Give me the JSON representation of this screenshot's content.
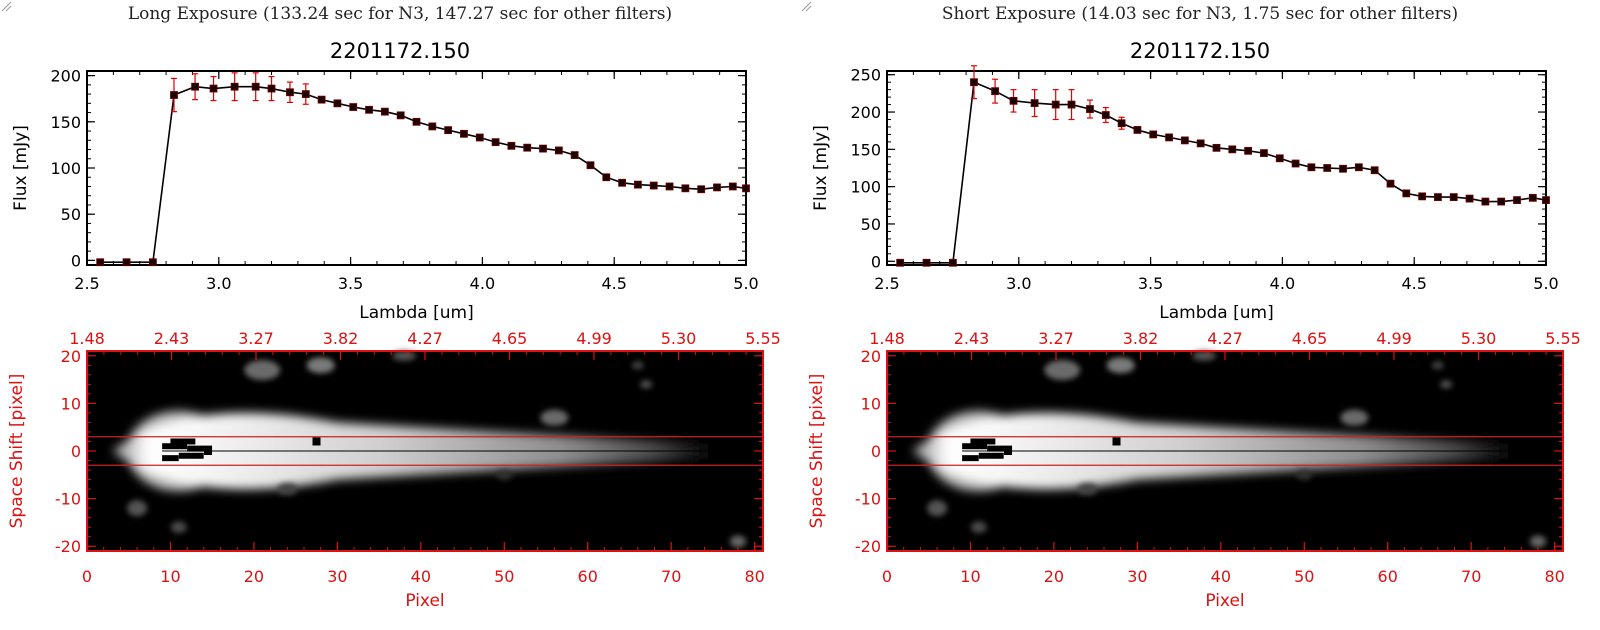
{
  "panels": [
    {
      "caption": "Long Exposure (133.24 sec for N3, 147.27 sec for other filters)",
      "spectrum": {
        "title": "2201172.150"
      },
      "image": {}
    },
    {
      "caption": "Short Exposure (14.03 sec for N3, 1.75 sec for other filters)",
      "spectrum": {
        "title": "2201172.150"
      },
      "image": {}
    }
  ],
  "colors": {
    "axis": "#000000",
    "error_bar": "#e00000",
    "image_axis": "#dd1111",
    "guide_line": "#cc2222",
    "background": "#ffffff"
  },
  "chart_data": [
    {
      "type": "line",
      "panel": "Long Exposure",
      "title": "2201172.150",
      "xlabel": "Lambda [um]",
      "ylabel": "Flux [mJy]",
      "xlim": [
        2.5,
        5.0
      ],
      "ylim": [
        -5,
        205
      ],
      "xticks": [
        "2.5",
        "3.0",
        "3.5",
        "4.0",
        "4.5",
        "5.0"
      ],
      "yticks": [
        "0",
        "50",
        "100",
        "150",
        "200"
      ],
      "grid": false,
      "markers": "filled squares",
      "series": [
        {
          "x": [
            2.55,
            2.65,
            2.75,
            2.83,
            2.91,
            2.98,
            3.06,
            3.14,
            3.2,
            3.27,
            3.33,
            3.39,
            3.45,
            3.51,
            3.57,
            3.63,
            3.69,
            3.75,
            3.81,
            3.87,
            3.93,
            3.99,
            4.05,
            4.11,
            4.17,
            4.23,
            4.29,
            4.35,
            4.41,
            4.47,
            4.53,
            4.59,
            4.65,
            4.71,
            4.77,
            4.83,
            4.89,
            4.95,
            5.0
          ],
          "y": [
            -2,
            -2,
            -2,
            179,
            188,
            186,
            188,
            188,
            186,
            182,
            180,
            174,
            170,
            166,
            163,
            161,
            157,
            150,
            145,
            141,
            137,
            133,
            128,
            124,
            122,
            121,
            119,
            114,
            103,
            90,
            84,
            82,
            81,
            80,
            78,
            77,
            79,
            80,
            78
          ],
          "y_err": [
            0,
            0,
            0,
            18,
            14,
            13,
            15,
            15,
            13,
            11,
            11,
            0,
            0,
            0,
            0,
            0,
            0,
            0,
            0,
            0,
            0,
            0,
            0,
            0,
            0,
            0,
            0,
            0,
            0,
            0,
            0,
            0,
            0,
            0,
            0,
            0,
            0,
            0,
            0
          ]
        }
      ]
    },
    {
      "type": "line",
      "panel": "Short Exposure",
      "title": "2201172.150",
      "xlabel": "Lambda [um]",
      "ylabel": "Flux [mJy]",
      "xlim": [
        2.5,
        5.0
      ],
      "ylim": [
        -5,
        255
      ],
      "xticks": [
        "2.5",
        "3.0",
        "3.5",
        "4.0",
        "4.5",
        "5.0"
      ],
      "yticks": [
        "0",
        "50",
        "100",
        "150",
        "200",
        "250"
      ],
      "grid": false,
      "markers": "filled squares",
      "series": [
        {
          "x": [
            2.55,
            2.65,
            2.75,
            2.83,
            2.91,
            2.98,
            3.06,
            3.14,
            3.2,
            3.27,
            3.33,
            3.39,
            3.45,
            3.51,
            3.57,
            3.63,
            3.69,
            3.75,
            3.81,
            3.87,
            3.93,
            3.99,
            4.05,
            4.11,
            4.17,
            4.23,
            4.29,
            4.35,
            4.41,
            4.47,
            4.53,
            4.59,
            4.65,
            4.71,
            4.77,
            4.83,
            4.89,
            4.95,
            5.0
          ],
          "y": [
            -2,
            -2,
            -2,
            240,
            228,
            215,
            212,
            210,
            210,
            204,
            196,
            185,
            176,
            170,
            166,
            162,
            158,
            152,
            150,
            148,
            145,
            138,
            131,
            126,
            125,
            124,
            126,
            122,
            104,
            91,
            87,
            86,
            86,
            84,
            80,
            80,
            82,
            85,
            82
          ],
          "y_err": [
            0,
            0,
            0,
            22,
            16,
            15,
            18,
            20,
            20,
            12,
            10,
            8,
            0,
            0,
            0,
            0,
            0,
            0,
            0,
            0,
            0,
            0,
            0,
            0,
            0,
            0,
            0,
            0,
            0,
            0,
            0,
            0,
            0,
            0,
            0,
            0,
            0,
            0,
            0
          ]
        }
      ]
    },
    {
      "type": "heatmap",
      "panel": "Long Exposure",
      "xlabel": "Pixel",
      "ylabel": "Space Shift [pixel]",
      "xlim": [
        0,
        81
      ],
      "ylim": [
        -21,
        21
      ],
      "xticks": [
        "0",
        "10",
        "20",
        "30",
        "40",
        "50",
        "60",
        "70",
        "80"
      ],
      "yticks": [
        "-20",
        "-10",
        "0",
        "10",
        "20"
      ],
      "top_axis_ticks": [
        "1.48",
        "2.43",
        "3.27",
        "3.82",
        "4.27",
        "4.65",
        "4.99",
        "5.30",
        "5.55"
      ],
      "guide_lines_y": [
        3,
        -3
      ],
      "marker_points": [
        {
          "x": 14.5,
          "y": 0
        },
        {
          "x": 27.5,
          "y": 2
        }
      ]
    },
    {
      "type": "heatmap",
      "panel": "Short Exposure",
      "xlabel": "Pixel",
      "ylabel": "Space Shift [pixel]",
      "xlim": [
        0,
        81
      ],
      "ylim": [
        -21,
        21
      ],
      "xticks": [
        "0",
        "10",
        "20",
        "30",
        "40",
        "50",
        "60",
        "70",
        "80"
      ],
      "yticks": [
        "-20",
        "-10",
        "0",
        "10",
        "20"
      ],
      "top_axis_ticks": [
        "1.48",
        "2.43",
        "3.27",
        "3.82",
        "4.27",
        "4.65",
        "4.99",
        "5.30",
        "5.55"
      ],
      "guide_lines_y": [
        3,
        -3
      ],
      "marker_points": [
        {
          "x": 14.5,
          "y": 0
        },
        {
          "x": 27.5,
          "y": 2
        }
      ]
    }
  ]
}
